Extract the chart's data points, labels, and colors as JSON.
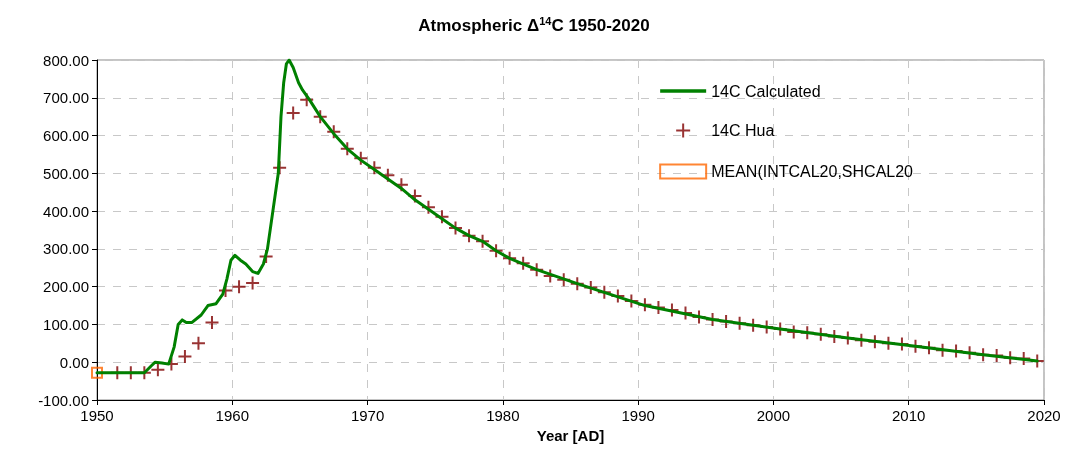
{
  "chart_data": {
    "type": "line",
    "title": "Atmospheric Δ$^{14}$C 1950-2020",
    "xlabel": "Year [AD]",
    "xlim": [
      1950,
      2020
    ],
    "xticks": [
      1950,
      1960,
      1970,
      1980,
      1990,
      2000,
      2010,
      2020
    ],
    "ylim": [
      -100,
      800
    ],
    "yticks": [
      {
        "value": -100,
        "label": "-100.00"
      },
      {
        "value": 0,
        "label": "0.00"
      },
      {
        "value": 100,
        "label": "100.00"
      },
      {
        "value": 200,
        "label": "200.00"
      },
      {
        "value": 300,
        "label": "300.00"
      },
      {
        "value": 400,
        "label": "400.00"
      },
      {
        "value": 500,
        "label": "500.00"
      },
      {
        "value": 600,
        "label": "600.00"
      },
      {
        "value": 700,
        "label": "700.00"
      },
      {
        "value": 800,
        "label": "800.00"
      }
    ],
    "grid": true,
    "legend": "top right",
    "series": [
      {
        "name": "14C Calculated",
        "color": "#008000",
        "marker": "none",
        "x": [
          1950,
          1952,
          1953.5,
          1954,
          1954.3,
          1954.8,
          1955.3,
          1955.7,
          1956,
          1956.3,
          1956.6,
          1957,
          1957.7,
          1958.2,
          1958.8,
          1959.3,
          1959.6,
          1959.9,
          1960.2,
          1960.6,
          1961,
          1961.5,
          1961.9,
          1962.3,
          1962.6,
          1963,
          1963.4,
          1963.6,
          1963.8,
          1964,
          1964.2,
          1964.5,
          1964.9,
          1965.2,
          1965.7,
          1966.5,
          1967.5,
          1968.5,
          1969.5,
          1970.5,
          1971.5,
          1972.5,
          1973.5,
          1974.5,
          1975.5,
          1976.5,
          1977.5,
          1978.5,
          1979.5,
          1980.5,
          1982.5,
          1985.5,
          1990.5,
          1995.5,
          2000.5,
          2005.5,
          2010.5,
          2015.5,
          2019.5
        ],
        "values": [
          -28,
          -28,
          -28,
          -10,
          0,
          -2,
          -5,
          40,
          100,
          112,
          105,
          105,
          125,
          150,
          155,
          180,
          220,
          270,
          283,
          270,
          260,
          240,
          235,
          260,
          300,
          400,
          500,
          650,
          740,
          790,
          800,
          780,
          740,
          720,
          695,
          650,
          605,
          565,
          535,
          510,
          485,
          460,
          430,
          405,
          380,
          355,
          335,
          320,
          295,
          275,
          245,
          208,
          150,
          113,
          88,
          64,
          42,
          20,
          3
        ]
      },
      {
        "name": "14C Hua",
        "type": "scatter",
        "color": "#800000",
        "marker": "cross",
        "x": [
          1951.5,
          1952.5,
          1953.5,
          1954.5,
          1955.5,
          1956.5,
          1957.5,
          1958.5,
          1959.5,
          1960.5,
          1961.5,
          1962.5,
          1963.5,
          1964.5,
          1965.5,
          1966.5,
          1967.5,
          1968.5,
          1969.5,
          1970.5,
          1971.5,
          1972.5,
          1973.5,
          1974.5,
          1975.5,
          1976.5,
          1977.5,
          1978.5,
          1979.5,
          1980.5,
          1981.5,
          1982.5,
          1983.5,
          1984.5,
          1985.5,
          1986.5,
          1987.5,
          1988.5,
          1989.5,
          1990.5,
          1991.5,
          1992.5,
          1993.5,
          1994.5,
          1995.5,
          1996.5,
          1997.5,
          1998.5,
          1999.5,
          2000.5,
          2001.5,
          2002.5,
          2003.5,
          2004.5,
          2005.5,
          2006.5,
          2007.5,
          2008.5,
          2009.5,
          2010.5,
          2011.5,
          2012.5,
          2013.5,
          2014.5,
          2015.5,
          2016.5,
          2017.5,
          2018.5,
          2019.5
        ],
        "values": [
          -28,
          -28,
          -28,
          -20,
          -5,
          15,
          50,
          105,
          190,
          200,
          210,
          280,
          515,
          660,
          695,
          650,
          610,
          565,
          540,
          515,
          495,
          470,
          440,
          410,
          385,
          355,
          335,
          320,
          295,
          275,
          262,
          245,
          228,
          218,
          208,
          198,
          185,
          175,
          162,
          152,
          145,
          138,
          130,
          120,
          113,
          108,
          103,
          98,
          93,
          88,
          80,
          78,
          74,
          68,
          64,
          58,
          54,
          50,
          48,
          42,
          38,
          32,
          30,
          25,
          20,
          18,
          12,
          10,
          3
        ]
      },
      {
        "name": "MEAN(INTCAL20,SHCAL20",
        "type": "scatter",
        "color": "#ff6600",
        "marker": "square",
        "x": [
          1950
        ],
        "values": [
          -28
        ]
      }
    ]
  }
}
